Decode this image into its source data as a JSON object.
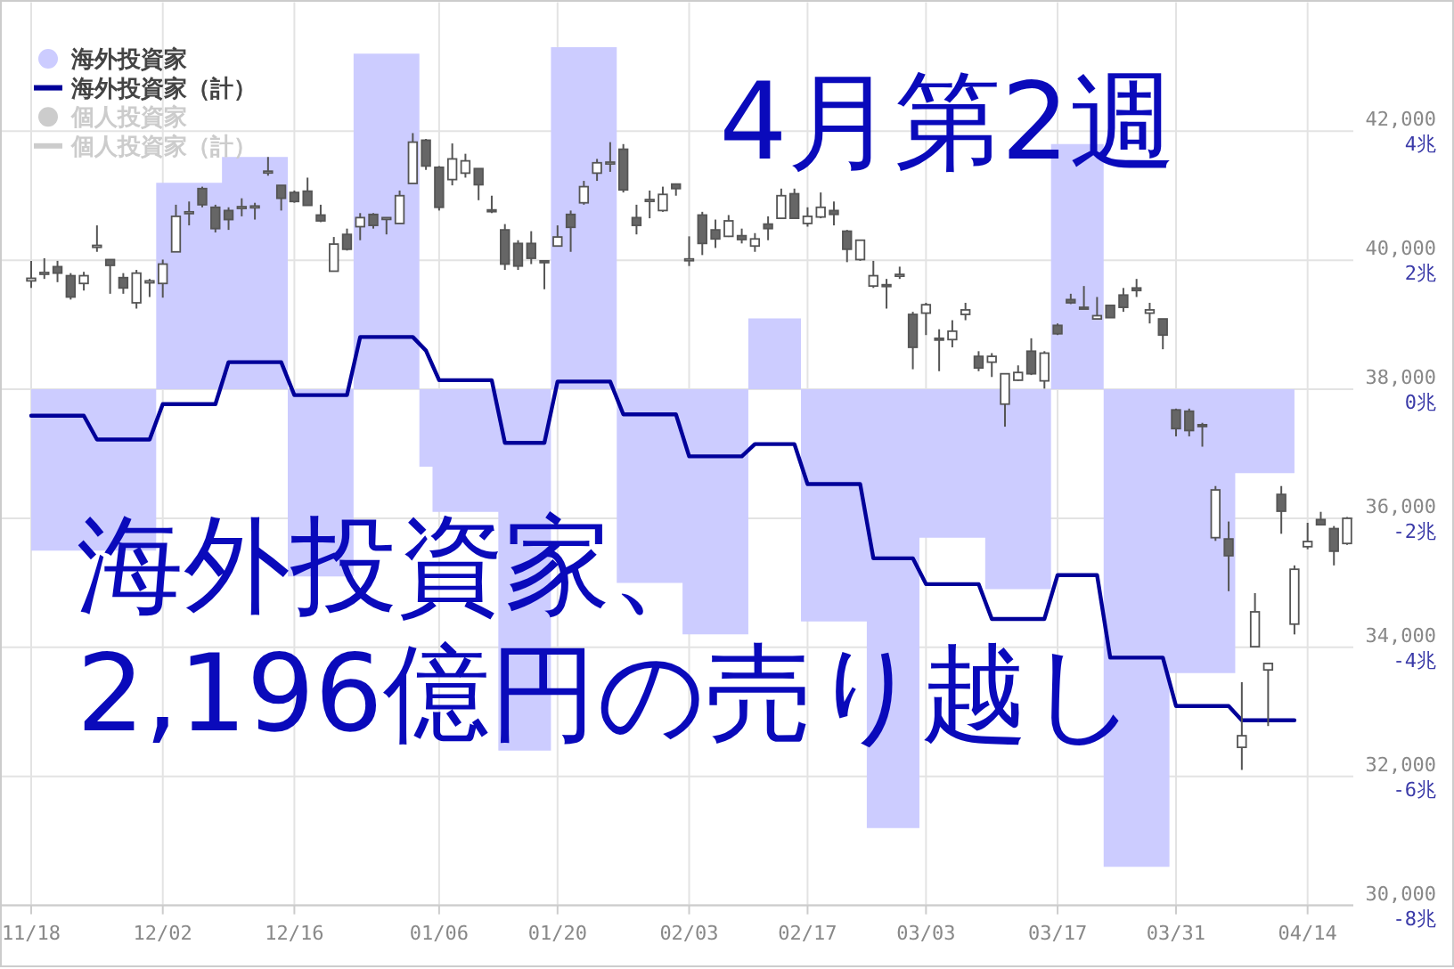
{
  "chart_data": {
    "type": "candlestick",
    "title": "4月第2週",
    "annotations": [
      "海外投資家、",
      "2,196億円の売り越し"
    ],
    "categories": [
      "11/18",
      null,
      null,
      null,
      null,
      null,
      null,
      null,
      null,
      null,
      "12/02",
      null,
      null,
      null,
      null,
      null,
      null,
      null,
      null,
      null,
      "12/16",
      null,
      null,
      null,
      null,
      null,
      null,
      null,
      null,
      null,
      null,
      "01/06",
      null,
      null,
      null,
      null,
      null,
      null,
      null,
      null,
      "01/20",
      null,
      null,
      null,
      null,
      null,
      null,
      null,
      null,
      null,
      "02/03",
      null,
      null,
      null,
      null,
      null,
      null,
      null,
      null,
      "02/17",
      null,
      null,
      null,
      null,
      null,
      null,
      null,
      null,
      "03/03",
      null,
      null,
      null,
      null,
      null,
      null,
      null,
      null,
      null,
      "03/17",
      null,
      null,
      null,
      null,
      null,
      null,
      null,
      null,
      "03/31",
      null,
      null,
      null,
      null,
      null,
      null,
      null,
      null,
      null,
      "04/14",
      null,
      null,
      null
    ],
    "ohlc": [
      [
        39680,
        39990,
        39570,
        39720
      ],
      [
        39790,
        40030,
        39710,
        39810
      ],
      [
        39900,
        39990,
        39660,
        39800
      ],
      [
        39760,
        39800,
        39390,
        39430
      ],
      [
        39640,
        39820,
        39530,
        39760
      ],
      [
        40200,
        40540,
        40130,
        40230
      ],
      [
        40010,
        40010,
        39480,
        39920
      ],
      [
        39730,
        39800,
        39480,
        39570
      ],
      [
        39340,
        39850,
        39250,
        39800
      ],
      [
        39650,
        39710,
        39430,
        39680
      ],
      [
        39640,
        40010,
        39420,
        39940
      ],
      [
        40130,
        40860,
        40130,
        40680
      ],
      [
        40730,
        40910,
        40540,
        40750
      ],
      [
        41110,
        41140,
        40820,
        40860
      ],
      [
        40820,
        40860,
        40430,
        40490
      ],
      [
        40770,
        40820,
        40470,
        40630
      ],
      [
        40810,
        40960,
        40680,
        40830
      ],
      [
        40830,
        40890,
        40630,
        40840
      ],
      [
        41360,
        41600,
        41310,
        41380
      ],
      [
        41160,
        41160,
        40770,
        40960
      ],
      [
        41050,
        41080,
        40890,
        40910
      ],
      [
        41070,
        41280,
        40850,
        40850
      ],
      [
        40700,
        40860,
        40590,
        40610
      ],
      [
        39830,
        40360,
        39830,
        40250
      ],
      [
        40400,
        40490,
        40150,
        40170
      ],
      [
        40520,
        40730,
        40310,
        40660
      ],
      [
        40710,
        40730,
        40490,
        40540
      ],
      [
        40650,
        40660,
        40400,
        40660
      ],
      [
        40570,
        41080,
        40570,
        41000
      ],
      [
        41190,
        41970,
        41190,
        41830
      ],
      [
        41860,
        41880,
        41400,
        41460
      ],
      [
        41440,
        41460,
        40770,
        40820
      ],
      [
        41250,
        41810,
        41160,
        41570
      ],
      [
        41350,
        41650,
        41280,
        41540
      ],
      [
        41420,
        41420,
        40930,
        41170
      ],
      [
        40780,
        41000,
        40730,
        40760
      ],
      [
        40470,
        40560,
        39850,
        39940
      ],
      [
        40260,
        40310,
        39850,
        39910
      ],
      [
        40260,
        40450,
        39940,
        40030
      ],
      [
        39990,
        39990,
        39550,
        39970
      ],
      [
        40220,
        40540,
        40220,
        40360
      ],
      [
        40710,
        40770,
        40130,
        40510
      ],
      [
        40890,
        41230,
        40860,
        41140
      ],
      [
        41350,
        41570,
        41230,
        41510
      ],
      [
        41500,
        41830,
        41370,
        41520
      ],
      [
        41720,
        41800,
        41050,
        41090
      ],
      [
        40660,
        40860,
        40400,
        40540
      ],
      [
        40930,
        41080,
        40650,
        40940
      ],
      [
        40770,
        41140,
        40750,
        41020
      ],
      [
        41180,
        41190,
        41000,
        41110
      ],
      [
        40010,
        40370,
        39910,
        40020
      ],
      [
        40700,
        40750,
        40080,
        40260
      ],
      [
        40470,
        40630,
        40190,
        40330
      ],
      [
        40370,
        40700,
        40360,
        40610
      ],
      [
        40380,
        40490,
        40260,
        40320
      ],
      [
        40220,
        40420,
        40130,
        40330
      ],
      [
        40560,
        40680,
        40310,
        40490
      ],
      [
        40650,
        41110,
        40650,
        41000
      ],
      [
        41030,
        41110,
        40650,
        40650
      ],
      [
        40570,
        40820,
        40520,
        40680
      ],
      [
        40670,
        41050,
        40650,
        40820
      ],
      [
        40770,
        40910,
        40540,
        40710
      ],
      [
        40450,
        40470,
        39970,
        40170
      ],
      [
        40010,
        40310,
        39990,
        40310
      ],
      [
        39600,
        39990,
        39570,
        39760
      ],
      [
        39620,
        39710,
        39250,
        39600
      ],
      [
        39770,
        39900,
        39710,
        39780
      ],
      [
        39160,
        39200,
        38310,
        38650
      ],
      [
        39180,
        39340,
        38840,
        39310
      ],
      [
        38790,
        38930,
        38280,
        38780
      ],
      [
        38770,
        39070,
        38650,
        38900
      ],
      [
        39160,
        39340,
        39070,
        39230
      ],
      [
        38510,
        38590,
        38280,
        38330
      ],
      [
        38420,
        38560,
        38190,
        38510
      ],
      [
        37770,
        38240,
        37420,
        38240
      ],
      [
        38140,
        38370,
        38130,
        38260
      ],
      [
        38590,
        38790,
        38220,
        38240
      ],
      [
        38130,
        38590,
        38010,
        38560
      ],
      [
        38990,
        39020,
        38840,
        38860
      ],
      [
        39390,
        39480,
        39320,
        39340
      ],
      [
        39270,
        39600,
        39250,
        39260
      ],
      [
        39090,
        39430,
        39080,
        39140
      ],
      [
        39300,
        39300,
        39110,
        39110
      ],
      [
        39460,
        39570,
        39200,
        39270
      ],
      [
        39570,
        39710,
        39430,
        39530
      ],
      [
        39180,
        39340,
        39020,
        39230
      ],
      [
        39090,
        39090,
        38620,
        38840
      ],
      [
        37680,
        37700,
        37270,
        37390
      ],
      [
        37660,
        37700,
        37270,
        37360
      ],
      [
        37450,
        37480,
        37110,
        37440
      ],
      [
        35700,
        36500,
        35650,
        36440
      ],
      [
        35680,
        35950,
        34870,
        35420
      ],
      [
        32450,
        33460,
        32100,
        32630
      ],
      [
        34010,
        34840,
        34010,
        34550
      ],
      [
        33650,
        33750,
        32780,
        33750
      ],
      [
        36370,
        36500,
        35760,
        36110
      ],
      [
        34360,
        35270,
        34200,
        35210
      ],
      [
        35560,
        35930,
        35520,
        35640
      ],
      [
        35980,
        36100,
        35900,
        35900
      ],
      [
        35840,
        35880,
        35270,
        35490
      ],
      [
        35610,
        36020,
        35590,
        36000
      ]
    ],
    "ylim": [
      30000,
      44000
    ],
    "yticks": [
      {
        "value": 30000,
        "label": "30,000"
      },
      {
        "value": 32000,
        "label": "32,000"
      },
      {
        "value": 34000,
        "label": "34,000"
      },
      {
        "value": 36000,
        "label": "36,000"
      },
      {
        "value": 38000,
        "label": "38,000"
      },
      {
        "value": 40000,
        "label": "40,000"
      },
      {
        "value": 42000,
        "label": "42,000"
      }
    ],
    "y2lim": [
      -8,
      6
    ],
    "y2ticks": [
      {
        "value": -8,
        "label": "-8兆"
      },
      {
        "value": -6,
        "label": "-6兆"
      },
      {
        "value": -4,
        "label": "-4兆"
      },
      {
        "value": -2,
        "label": "-2兆"
      },
      {
        "value": 0,
        "label": "0兆"
      },
      {
        "value": 2,
        "label": "2兆"
      },
      {
        "value": 4,
        "label": "4兆"
      }
    ],
    "series": [
      {
        "name": "海外投資家",
        "type": "area",
        "axis": "y2",
        "color": "#ccccff",
        "values": [
          -2.5,
          -2.5,
          -2.5,
          -2.5,
          -2.5,
          -2.5,
          -2.5,
          -2.5,
          -2.5,
          -2.5,
          3.2,
          3.2,
          3.2,
          3.2,
          3.2,
          3.6,
          3.6,
          3.6,
          3.6,
          3.6,
          -2.9,
          -2.9,
          -2.9,
          -2.9,
          -2.9,
          5.2,
          5.2,
          5.2,
          5.2,
          5.2,
          -1.2,
          -1.9,
          -1.9,
          -1.9,
          -1.9,
          -1.9,
          -5.6,
          -5.6,
          -5.6,
          -5.6,
          5.3,
          5.3,
          5.3,
          5.3,
          5.3,
          -3.0,
          -3.0,
          -3.0,
          -3.0,
          -3.0,
          -3.8,
          -3.8,
          -3.8,
          -3.8,
          -3.8,
          1.1,
          1.1,
          1.1,
          1.1,
          -3.6,
          -3.6,
          -3.6,
          -3.6,
          -3.6,
          -6.8,
          -6.8,
          -6.8,
          -6.8,
          -2.3,
          -2.3,
          -2.3,
          -2.3,
          -2.3,
          -3.1,
          -3.1,
          -3.1,
          -3.1,
          -3.1,
          3.8,
          3.8,
          3.8,
          3.8,
          -7.4,
          -7.4,
          -7.4,
          -7.4,
          -7.4,
          -4.4,
          -4.4,
          -4.4,
          -4.4,
          -4.4,
          -1.3,
          -1.3,
          -1.3,
          -1.3,
          -1.3,
          null,
          null,
          null,
          null
        ]
      },
      {
        "name": "海外投資家（計）",
        "type": "line",
        "axis": "y2",
        "color": "#000099",
        "values": [
          -0.41,
          -0.41,
          -0.41,
          -0.41,
          -0.41,
          -0.78,
          -0.78,
          -0.78,
          -0.78,
          -0.78,
          -0.23,
          -0.23,
          -0.23,
          -0.23,
          -0.23,
          0.42,
          0.42,
          0.42,
          0.42,
          0.42,
          -0.09,
          -0.09,
          -0.09,
          -0.09,
          -0.09,
          0.81,
          0.81,
          0.81,
          0.81,
          0.81,
          0.6,
          0.14,
          0.14,
          0.14,
          0.14,
          0.14,
          -0.83,
          -0.83,
          -0.83,
          -0.83,
          0.12,
          0.12,
          0.12,
          0.12,
          0.12,
          -0.39,
          -0.39,
          -0.39,
          -0.39,
          -0.39,
          -1.04,
          -1.04,
          -1.04,
          -1.04,
          -1.04,
          -0.85,
          -0.85,
          -0.85,
          -0.85,
          -1.47,
          -1.47,
          -1.47,
          -1.47,
          -1.47,
          -2.62,
          -2.62,
          -2.62,
          -2.62,
          -3.02,
          -3.02,
          -3.02,
          -3.02,
          -3.02,
          -3.56,
          -3.56,
          -3.56,
          -3.56,
          -3.56,
          -2.88,
          -2.88,
          -2.88,
          -2.88,
          -4.16,
          -4.16,
          -4.16,
          -4.16,
          -4.16,
          -4.91,
          -4.91,
          -4.91,
          -4.91,
          -4.91,
          -5.13,
          -5.13,
          -5.13,
          -5.13,
          -5.13,
          null,
          null,
          null,
          null
        ]
      },
      {
        "name": "個人投資家",
        "type": "area",
        "axis": "y2",
        "color": "#cccccc",
        "values": [
          null,
          null,
          null,
          null,
          null,
          null,
          null,
          null,
          null,
          null,
          null,
          null,
          null,
          null,
          null,
          null,
          null,
          null,
          null,
          null,
          null,
          null,
          null,
          null,
          null,
          null,
          null,
          null,
          null,
          null,
          null,
          null,
          null,
          null,
          null,
          null,
          null,
          null,
          null,
          null,
          null,
          null,
          null,
          null,
          null,
          null,
          null,
          null,
          null,
          null,
          null,
          null,
          null,
          null,
          null,
          null,
          null,
          null,
          null,
          null,
          null,
          null,
          null,
          null,
          null,
          null,
          null,
          null,
          null,
          null,
          null,
          null,
          null,
          null,
          null,
          null,
          null,
          null,
          null,
          null,
          null,
          null,
          null,
          null,
          null,
          null,
          null,
          null,
          null,
          null,
          null,
          null,
          null,
          null,
          null,
          null,
          null,
          null,
          null,
          null,
          null
        ]
      },
      {
        "name": "個人投資家（計）",
        "type": "line",
        "axis": "y2",
        "color": "#cccccc",
        "values": [
          null,
          null,
          null,
          null,
          null,
          null,
          null,
          null,
          null,
          null,
          null,
          null,
          null,
          null,
          null,
          null,
          null,
          null,
          null,
          null,
          null,
          null,
          null,
          null,
          null,
          null,
          null,
          null,
          null,
          null,
          null,
          null,
          null,
          null,
          null,
          null,
          null,
          null,
          null,
          null,
          null,
          null,
          null,
          null,
          null,
          null,
          null,
          null,
          null,
          null,
          null,
          null,
          null,
          null,
          null,
          null,
          null,
          null,
          null,
          null,
          null,
          null,
          null,
          null,
          null,
          null,
          null,
          null,
          null,
          null,
          null,
          null,
          null,
          null,
          null,
          null,
          null,
          null,
          null,
          null,
          null,
          null,
          null,
          null,
          null,
          null,
          null,
          null,
          null,
          null,
          null,
          null,
          null,
          null,
          null,
          null,
          null,
          null,
          null,
          null,
          null
        ]
      }
    ],
    "grid": true,
    "legend": "top left"
  }
}
